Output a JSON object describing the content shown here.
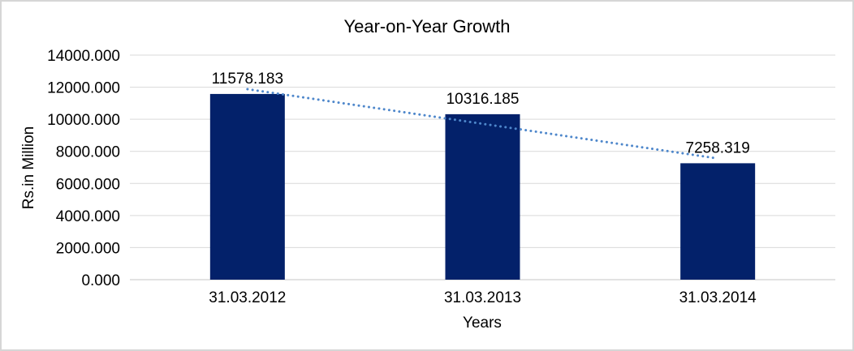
{
  "window": {
    "background": "#ffffff",
    "border_color": "#d6d6d6"
  },
  "chart_data": {
    "type": "bar",
    "title": "Year-on-Year Growth",
    "categories": [
      "31.03.2012",
      "31.03.2013",
      "31.03.2014"
    ],
    "values": [
      11578.183,
      10316.185,
      7258.319
    ],
    "data_labels": [
      "11578.183",
      "10316.185",
      "7258.319"
    ],
    "xlabel": "Years",
    "ylabel": "Rs.in Million",
    "ylim": [
      0,
      14000
    ],
    "ytick_step": 2000,
    "ytick_labels": [
      "0.000",
      "2000.000",
      "4000.000",
      "6000.000",
      "8000.000",
      "10000.000",
      "12000.000",
      "14000.000"
    ],
    "grid": true,
    "legend": "none",
    "colors": {
      "bar": "#03216a",
      "trendline": "#4e87cb",
      "gridline": "#d9d9d9",
      "axis_line": "#c6c6c6",
      "text": "#000000"
    },
    "trendline": {
      "type": "linear",
      "line_style": "dotted",
      "start_value": 11877.5,
      "end_value": 7557.6
    }
  }
}
